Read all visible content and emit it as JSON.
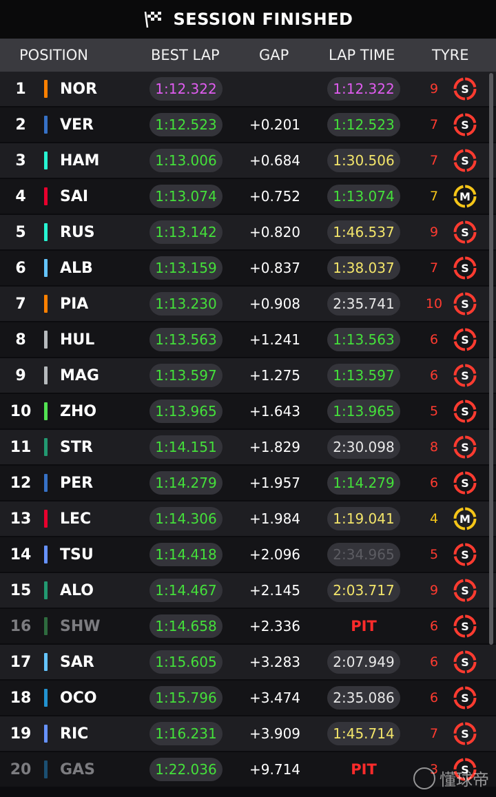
{
  "header": {
    "title": "SESSION FINISHED"
  },
  "columns": {
    "position": "POSITION",
    "best_lap": "BEST LAP",
    "gap": "GAP",
    "lap_time": "LAP TIME",
    "tyre": "TYRE"
  },
  "colors": {
    "purple": "#e05cf0",
    "green": "#44e03a",
    "yellow": "#f3e56a",
    "white": "#e8e8e8",
    "soft": "#ff3b30",
    "medium": "#f5c518"
  },
  "rows": [
    {
      "pos": "1",
      "drv": "NOR",
      "team": "#ff8000",
      "best": "1:12.322",
      "best_color": "purple",
      "gap": "",
      "lap": "1:12.322",
      "lap_color": "purple",
      "laps": "9",
      "tyre": "S"
    },
    {
      "pos": "2",
      "drv": "VER",
      "team": "#3671c6",
      "best": "1:12.523",
      "best_color": "green",
      "gap": "+0.201",
      "lap": "1:12.523",
      "lap_color": "green",
      "laps": "7",
      "tyre": "S"
    },
    {
      "pos": "3",
      "drv": "HAM",
      "team": "#27f4d2",
      "best": "1:13.006",
      "best_color": "green",
      "gap": "+0.684",
      "lap": "1:30.506",
      "lap_color": "yellow",
      "laps": "7",
      "tyre": "S"
    },
    {
      "pos": "4",
      "drv": "SAI",
      "team": "#e8002d",
      "best": "1:13.074",
      "best_color": "green",
      "gap": "+0.752",
      "lap": "1:13.074",
      "lap_color": "green",
      "laps": "7",
      "tyre": "M"
    },
    {
      "pos": "5",
      "drv": "RUS",
      "team": "#27f4d2",
      "best": "1:13.142",
      "best_color": "green",
      "gap": "+0.820",
      "lap": "1:46.537",
      "lap_color": "yellow",
      "laps": "9",
      "tyre": "S"
    },
    {
      "pos": "6",
      "drv": "ALB",
      "team": "#64c4ff",
      "best": "1:13.159",
      "best_color": "green",
      "gap": "+0.837",
      "lap": "1:38.037",
      "lap_color": "yellow",
      "laps": "7",
      "tyre": "S"
    },
    {
      "pos": "7",
      "drv": "PIA",
      "team": "#ff8000",
      "best": "1:13.230",
      "best_color": "green",
      "gap": "+0.908",
      "lap": "2:35.741",
      "lap_color": "white",
      "laps": "10",
      "tyre": "S"
    },
    {
      "pos": "8",
      "drv": "HUL",
      "team": "#b6babd",
      "best": "1:13.563",
      "best_color": "green",
      "gap": "+1.241",
      "lap": "1:13.563",
      "lap_color": "green",
      "laps": "6",
      "tyre": "S"
    },
    {
      "pos": "9",
      "drv": "MAG",
      "team": "#b6babd",
      "best": "1:13.597",
      "best_color": "green",
      "gap": "+1.275",
      "lap": "1:13.597",
      "lap_color": "green",
      "laps": "6",
      "tyre": "S"
    },
    {
      "pos": "10",
      "drv": "ZHO",
      "team": "#52e252",
      "best": "1:13.965",
      "best_color": "green",
      "gap": "+1.643",
      "lap": "1:13.965",
      "lap_color": "green",
      "laps": "5",
      "tyre": "S"
    },
    {
      "pos": "11",
      "drv": "STR",
      "team": "#229971",
      "best": "1:14.151",
      "best_color": "green",
      "gap": "+1.829",
      "lap": "2:30.098",
      "lap_color": "white",
      "laps": "8",
      "tyre": "S"
    },
    {
      "pos": "12",
      "drv": "PER",
      "team": "#3671c6",
      "best": "1:14.279",
      "best_color": "green",
      "gap": "+1.957",
      "lap": "1:14.279",
      "lap_color": "green",
      "laps": "6",
      "tyre": "S"
    },
    {
      "pos": "13",
      "drv": "LEC",
      "team": "#e8002d",
      "best": "1:14.306",
      "best_color": "green",
      "gap": "+1.984",
      "lap": "1:19.041",
      "lap_color": "yellow",
      "laps": "4",
      "tyre": "M"
    },
    {
      "pos": "14",
      "drv": "TSU",
      "team": "#6692ff",
      "best": "1:14.418",
      "best_color": "green",
      "gap": "+2.096",
      "lap": "2:34.965",
      "lap_color": "faded",
      "laps": "5",
      "tyre": "S"
    },
    {
      "pos": "15",
      "drv": "ALO",
      "team": "#229971",
      "best": "1:14.467",
      "best_color": "green",
      "gap": "+2.145",
      "lap": "2:03.717",
      "lap_color": "yellow",
      "laps": "9",
      "tyre": "S"
    },
    {
      "pos": "16",
      "drv": "SHW",
      "team": "#2e6b3e",
      "best": "1:14.658",
      "best_color": "green",
      "gap": "+2.336",
      "lap": "PIT",
      "lap_color": "pit",
      "laps": "6",
      "tyre": "S",
      "dim": true
    },
    {
      "pos": "17",
      "drv": "SAR",
      "team": "#64c4ff",
      "best": "1:15.605",
      "best_color": "green",
      "gap": "+3.283",
      "lap": "2:07.949",
      "lap_color": "white",
      "laps": "6",
      "tyre": "S"
    },
    {
      "pos": "18",
      "drv": "OCO",
      "team": "#2293d1",
      "best": "1:15.796",
      "best_color": "green",
      "gap": "+3.474",
      "lap": "2:35.086",
      "lap_color": "white",
      "laps": "6",
      "tyre": "S"
    },
    {
      "pos": "19",
      "drv": "RIC",
      "team": "#6692ff",
      "best": "1:16.231",
      "best_color": "green",
      "gap": "+3.909",
      "lap": "1:45.714",
      "lap_color": "yellow",
      "laps": "7",
      "tyre": "S"
    },
    {
      "pos": "20",
      "drv": "GAS",
      "team": "#1b4f72",
      "best": "1:22.036",
      "best_color": "green",
      "gap": "+9.714",
      "lap": "PIT",
      "lap_color": "pit",
      "laps": "3",
      "tyre": "S",
      "dim": true
    }
  ],
  "watermark": {
    "text": "懂球帝"
  }
}
